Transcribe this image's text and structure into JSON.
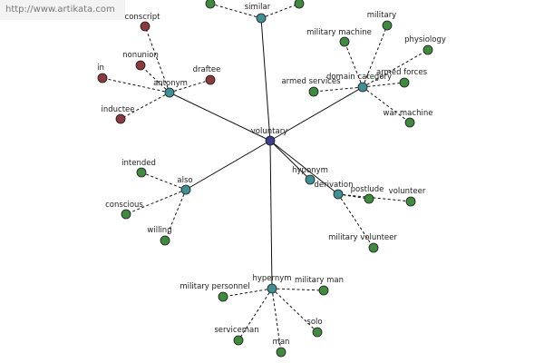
{
  "watermark": "http://www.artikata.com",
  "colors": {
    "center": "#3b3f8a",
    "hub": "#3f8f95",
    "green": "#3f8a3f",
    "red": "#8a3a3e"
  },
  "graph": {
    "center": "voluntary",
    "hubs": {
      "similar": "similar",
      "antonym": "antonym",
      "domain": "domain category",
      "hyponym": "hyponym",
      "derivation": "derivation",
      "also": "also",
      "hypernym": "hypernym"
    },
    "leaves": {
      "conscript": "conscript",
      "nonunion": "nonunion",
      "draftee": "draftee",
      "in": "in",
      "inductee": "inductee",
      "military": "military",
      "military_machine": "military machine",
      "physiology": "physiology",
      "armed_forces": "armed forces",
      "armed_services": "armed services",
      "war_machine": "war machine",
      "postlude": "postlude",
      "volunteer": "volunteer",
      "military_volunteer": "military volunteer",
      "intended": "intended",
      "conscious": "conscious",
      "willing": "willing",
      "military_personnel": "military personnel",
      "military_man": "military man",
      "serviceman": "serviceman",
      "man": "man",
      "solo": "solo"
    }
  }
}
